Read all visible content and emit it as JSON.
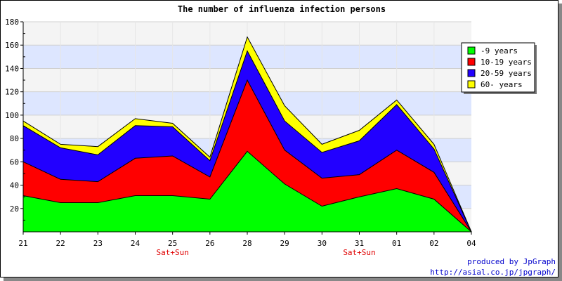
{
  "chart_data": {
    "type": "area",
    "stacked": true,
    "title": "The number of influenza infection persons",
    "xlabel": "",
    "ylabel": "",
    "categories": [
      "21",
      "22",
      "23",
      "24",
      "25",
      "26",
      "28",
      "29",
      "30",
      "31",
      "01",
      "02",
      "04"
    ],
    "category_sublabels": [
      "",
      "",
      "",
      "",
      "Sat+Sun",
      "",
      "",
      "",
      "",
      "Sat+Sun",
      "",
      "",
      ""
    ],
    "ylim": [
      0,
      180
    ],
    "yticks": [
      20,
      40,
      60,
      80,
      100,
      120,
      140,
      160,
      180
    ],
    "grid": true,
    "legend_position": "top-right",
    "series": [
      {
        "name": "-9 years",
        "color": "#00ff00",
        "values": [
          31,
          25,
          25,
          31,
          31,
          28,
          69,
          41,
          22,
          30,
          37,
          28,
          0
        ]
      },
      {
        "name": "10-19 years",
        "color": "#ff0000",
        "values": [
          29,
          20,
          18,
          32,
          34,
          19,
          61,
          29,
          24,
          19,
          33,
          23,
          0
        ]
      },
      {
        "name": "20-59 years",
        "color": "#2200ff",
        "values": [
          31,
          27,
          23,
          28,
          25,
          14,
          25,
          25,
          22,
          29,
          39,
          20,
          0
        ]
      },
      {
        "name": "60- years",
        "color": "#ffff00",
        "values": [
          4,
          3,
          7,
          6,
          3,
          3,
          12,
          13,
          7,
          9,
          4,
          4,
          0
        ]
      }
    ]
  },
  "credits": {
    "line1": "produced by JpGraph",
    "line2": "http://asial.co.jp/jpgraph/"
  }
}
